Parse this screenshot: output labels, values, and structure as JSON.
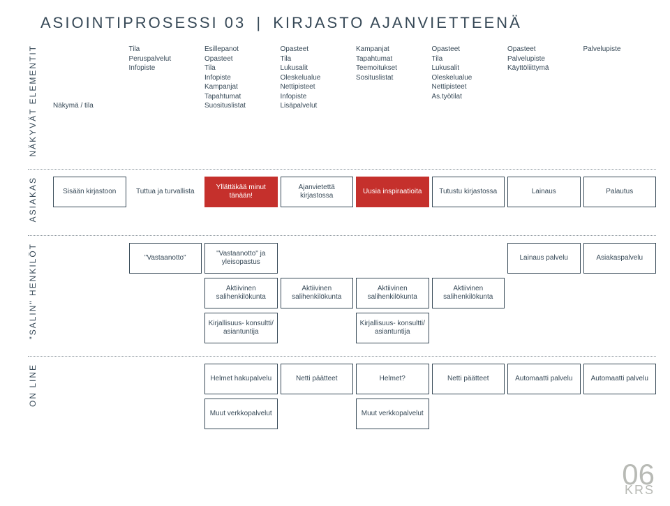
{
  "colors": {
    "text": "#374957",
    "boxBorder": "#374957",
    "boxBg": "#ffffff",
    "highlightBg": "#c5302c",
    "highlightText": "#ffffff",
    "dotted": "#8a949c",
    "pageNum": "#b8bab5"
  },
  "title": {
    "pre": "ASIOINTIPROSESSI",
    "num": "03",
    "post": "KIRJASTO AJANVIETTEENÄ"
  },
  "pageNumber": {
    "big": "06",
    "small": "KRS"
  },
  "elementit": {
    "label": "NÄKYVÄT\nELEMENTIT",
    "cols": [
      "Näkymä / tila",
      "Tila\nPeruspalvelut\nInfopiste",
      "Esillepanot\nOpasteet\nTila\nInfopiste\nKampanjat\nTapahtumat\nSuosituslistat",
      "Opasteet\nTila\nLukusalit\nOleskelualue\nNettipisteet\nInfopiste\nLisäpalvelut",
      "Kampanjat\nTapahtumat\nTeemoitukset\nSosituslistat",
      "Opasteet\nTila\nLukusalit\nOleskelualue\nNettipisteet\nAs.työtilat",
      "Opasteet\nPalvelupiste\nKäyttöliittymä",
      "Palvelupiste"
    ]
  },
  "asiakas": {
    "label": "ASIAKAS",
    "row1": [
      {
        "text": "Sisään\nkirjastoon"
      },
      {
        "text": "Tuttua ja\nturvallista",
        "noborder": true
      },
      {
        "text": "Yllättäkää\nminut\ntänään!",
        "red": true
      },
      {
        "text": "Ajanvietettä\nkirjastossa"
      },
      {
        "text": "Uusia\ninspiraatioita",
        "red": true
      },
      {
        "text": "Tutustu\nkirjastossa"
      },
      {
        "text": "Lainaus"
      },
      {
        "text": "Palautus"
      }
    ]
  },
  "salin": {
    "label": "\"SALIN\"\nHENKILÖT",
    "row1": [
      null,
      {
        "text": "\"Vastaanotto\""
      },
      {
        "text": "\"Vastaanotto\"\nja yleisopastus"
      },
      null,
      null,
      null,
      {
        "text": "Lainaus\npalvelu"
      },
      {
        "text": "Asiakaspalvelu"
      }
    ],
    "row2": [
      null,
      null,
      {
        "text": "Aktiivinen\nsalihenkilökunta"
      },
      {
        "text": "Aktiivinen\nsalihenkilökunta"
      },
      {
        "text": "Aktiivinen\nsalihenkilökunta"
      },
      {
        "text": "Aktiivinen\nsalihenkilökunta"
      },
      null,
      null
    ],
    "row3": [
      null,
      null,
      {
        "text": "Kirjallisuus-\nkonsultti/\nasiantuntija"
      },
      null,
      {
        "text": "Kirjallisuus-\nkonsultti/\nasiantuntija"
      },
      null,
      null,
      null
    ]
  },
  "online": {
    "label": "ON LINE",
    "row1": [
      null,
      null,
      {
        "text": "Helmet\nhakupalvelu"
      },
      {
        "text": "Netti\npäätteet"
      },
      {
        "text": "Helmet?"
      },
      {
        "text": "Netti\npäätteet"
      },
      {
        "text": "Automaatti\npalvelu"
      },
      {
        "text": "Automaatti\npalvelu"
      }
    ],
    "row2": [
      null,
      null,
      {
        "text": "Muut\nverkkopalvelut"
      },
      null,
      {
        "text": "Muut\nverkkopalvelut"
      },
      null,
      null,
      null
    ]
  }
}
